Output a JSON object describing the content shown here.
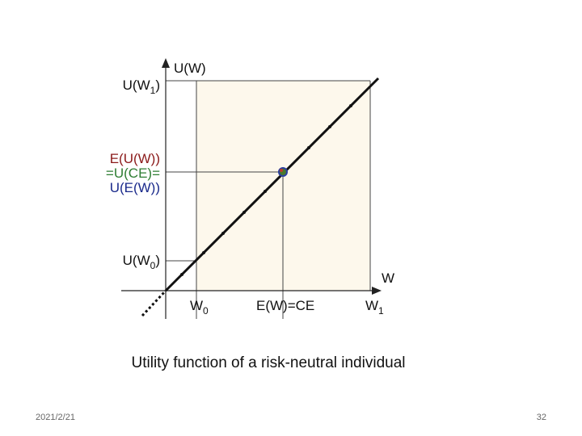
{
  "diagram": {
    "y_axis_label": "U(W)",
    "x_axis_label": "W",
    "y_labels": {
      "u_w1": {
        "base": "U(W",
        "sub": "1",
        "tail": ")"
      },
      "expected_utility": "E(U(W))",
      "u_ce": "=U(CE)=",
      "u_ew": "U(E(W))",
      "u_w0": {
        "base": "U(W",
        "sub": "0",
        "tail": ")"
      }
    },
    "x_labels": {
      "w0": {
        "base": "W",
        "sub": "0"
      },
      "ew_ce": "E(W)=CE",
      "w1": {
        "base": "W",
        "sub": "1"
      }
    }
  },
  "caption": "Utility function of a risk-neutral individual",
  "footer": {
    "date": "2021/2/21",
    "page": "32"
  }
}
